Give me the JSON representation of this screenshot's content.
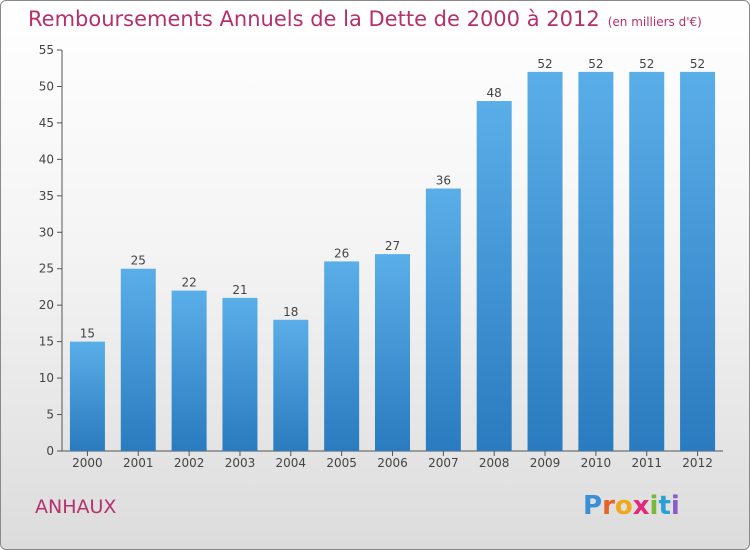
{
  "header": {
    "title": "Remboursements Annuels de la Dette de 2000 à 2012",
    "unit": "(en milliers d'€)"
  },
  "footer": {
    "commune": "ANHAUX",
    "logo_letters": [
      "P",
      "r",
      "o",
      "x",
      "i",
      "t",
      "i"
    ],
    "logo_colors": [
      "#3a8fd6",
      "#e8602a",
      "#f0a81c",
      "#e3287a",
      "#7ab83a",
      "#2a9fd8",
      "#8a5cc8"
    ]
  },
  "chart_data": {
    "type": "bar",
    "title": "Remboursements Annuels de la Dette de 2000 à 2012",
    "xlabel": "",
    "ylabel": "",
    "categories": [
      "2000",
      "2001",
      "2002",
      "2003",
      "2004",
      "2005",
      "2006",
      "2007",
      "2008",
      "2009",
      "2010",
      "2011",
      "2012"
    ],
    "values": [
      15,
      25,
      22,
      21,
      18,
      26,
      27,
      36,
      48,
      52,
      52,
      52,
      52
    ],
    "ylim": [
      0,
      55
    ],
    "yticks": [
      0,
      5,
      10,
      15,
      20,
      25,
      30,
      35,
      40,
      45,
      50,
      55
    ],
    "grid": false,
    "legend": "none",
    "bar_color_top": "#5aaee8",
    "bar_color_bottom": "#2a7bbf",
    "label_color": "#444444"
  }
}
